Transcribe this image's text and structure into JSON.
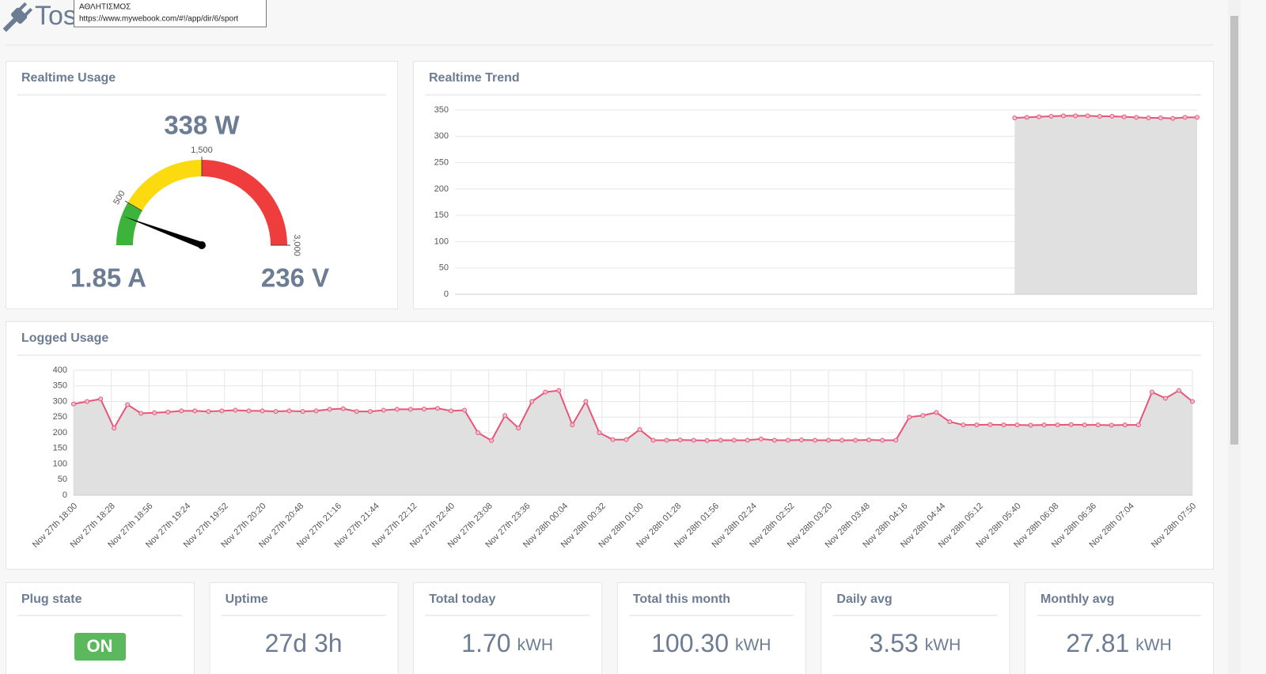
{
  "header": {
    "title": "Tos",
    "tooltip": {
      "title": "ΑΘΛΗΤΙΣΜΟΣ",
      "url": "https://www.mywebook.com/#!/app/dir/6/sport"
    }
  },
  "realtime_usage": {
    "title": "Realtime Usage",
    "current": "1.85 A",
    "voltage": "236 V",
    "chart_data": {
      "type": "gauge",
      "value": 338,
      "value_label": "338 W",
      "lim": [
        0,
        3000
      ],
      "ticks": [
        500,
        {
          "value": 1500,
          "label": "1,500"
        },
        {
          "value": 3000,
          "label": "3,000"
        }
      ],
      "bands": [
        {
          "from": 0,
          "to": 500,
          "color": "#3cb43c"
        },
        {
          "from": 500,
          "to": 1500,
          "color": "#fbdb0f"
        },
        {
          "from": 1500,
          "to": 3000,
          "color": "#ef3c3c"
        }
      ]
    }
  },
  "realtime_trend": {
    "title": "Realtime Trend",
    "chart_data": {
      "type": "line",
      "color": "#e8557a",
      "fill": "#e0e0e0",
      "grid": true,
      "values": [
        null,
        null,
        null,
        null,
        null,
        null,
        null,
        null,
        null,
        null,
        null,
        null,
        null,
        null,
        null,
        null,
        null,
        null,
        null,
        null,
        null,
        null,
        null,
        null,
        null,
        null,
        null,
        null,
        null,
        null,
        null,
        null,
        null,
        null,
        null,
        null,
        null,
        null,
        null,
        null,
        null,
        null,
        null,
        null,
        null,
        null,
        335,
        336,
        337,
        338,
        339,
        339,
        339,
        338,
        338,
        337,
        336,
        335,
        335,
        334,
        336,
        336
      ],
      "ylim": [
        0,
        350
      ],
      "yticks": [
        0,
        50,
        100,
        150,
        200,
        250,
        300,
        350
      ]
    }
  },
  "logged_usage": {
    "title": "Logged Usage",
    "chart_data": {
      "type": "line",
      "color": "#e8557a",
      "fill": "#e0e0e0",
      "grid": true,
      "x": [
        "Nov 27th 18:00",
        "Nov 27th 18:10",
        "Nov 27th 18:20",
        "Nov 27th 18:30",
        "Nov 27th 18:40",
        "Nov 27th 18:50",
        "Nov 27th 19:00",
        "Nov 27th 19:10",
        "Nov 27th 19:20",
        "Nov 27th 19:30",
        "Nov 27th 19:40",
        "Nov 27th 19:50",
        "Nov 27th 20:00",
        "Nov 27th 20:10",
        "Nov 27th 20:20",
        "Nov 27th 20:30",
        "Nov 27th 20:40",
        "Nov 27th 20:50",
        "Nov 27th 21:00",
        "Nov 27th 21:10",
        "Nov 27th 21:20",
        "Nov 27th 21:30",
        "Nov 27th 21:40",
        "Nov 27th 21:50",
        "Nov 27th 22:00",
        "Nov 27th 22:10",
        "Nov 27th 22:20",
        "Nov 27th 22:30",
        "Nov 27th 22:40",
        "Nov 27th 22:50",
        "Nov 27th 23:00",
        "Nov 27th 23:10",
        "Nov 27th 23:20",
        "Nov 27th 23:30",
        "Nov 27th 23:40",
        "Nov 27th 23:50",
        "Nov 28th 00:00",
        "Nov 28th 00:10",
        "Nov 28th 00:20",
        "Nov 28th 00:30",
        "Nov 28th 00:40",
        "Nov 28th 00:50",
        "Nov 28th 01:00",
        "Nov 28th 01:10",
        "Nov 28th 01:20",
        "Nov 28th 01:30",
        "Nov 28th 01:40",
        "Nov 28th 01:50",
        "Nov 28th 02:00",
        "Nov 28th 02:10",
        "Nov 28th 02:20",
        "Nov 28th 02:30",
        "Nov 28th 02:40",
        "Nov 28th 02:50",
        "Nov 28th 03:00",
        "Nov 28th 03:10",
        "Nov 28th 03:20",
        "Nov 28th 03:30",
        "Nov 28th 03:40",
        "Nov 28th 03:50",
        "Nov 28th 04:00",
        "Nov 28th 04:10",
        "Nov 28th 04:20",
        "Nov 28th 04:30",
        "Nov 28th 04:40",
        "Nov 28th 04:50",
        "Nov 28th 05:00",
        "Nov 28th 05:10",
        "Nov 28th 05:20",
        "Nov 28th 05:30",
        "Nov 28th 05:40",
        "Nov 28th 05:50",
        "Nov 28th 06:00",
        "Nov 28th 06:10",
        "Nov 28th 06:20",
        "Nov 28th 06:30",
        "Nov 28th 06:40",
        "Nov 28th 06:50",
        "Nov 28th 07:00",
        "Nov 28th 07:10",
        "Nov 28th 07:20",
        "Nov 28th 07:30",
        "Nov 28th 07:40",
        "Nov 28th 07:50"
      ],
      "values": [
        292,
        300,
        308,
        215,
        290,
        262,
        264,
        266,
        270,
        270,
        268,
        270,
        272,
        270,
        270,
        268,
        270,
        268,
        270,
        275,
        277,
        268,
        268,
        272,
        275,
        275,
        276,
        278,
        270,
        272,
        200,
        175,
        255,
        215,
        300,
        330,
        335,
        225,
        300,
        200,
        178,
        178,
        210,
        176,
        176,
        177,
        176,
        175,
        176,
        176,
        176,
        180,
        176,
        176,
        177,
        176,
        176,
        176,
        176,
        177,
        176,
        176,
        250,
        255,
        265,
        235,
        225,
        225,
        226,
        225,
        225,
        224,
        225,
        225,
        226,
        225,
        225,
        224,
        225,
        225,
        330,
        310,
        335,
        300
      ],
      "xticks": [
        "Nov 27th 18:00",
        "Nov 27th 18:28",
        "Nov 27th 18:56",
        "Nov 27th 19:24",
        "Nov 27th 19:52",
        "Nov 27th 20:20",
        "Nov 27th 20:48",
        "Nov 27th 21:16",
        "Nov 27th 21:44",
        "Nov 27th 22:12",
        "Nov 27th 22:40",
        "Nov 27th 23:08",
        "Nov 27th 23:36",
        "Nov 28th 00:04",
        "Nov 28th 00:32",
        "Nov 28th 01:00",
        "Nov 28th 01:28",
        "Nov 28th 01:56",
        "Nov 28th 02:24",
        "Nov 28th 02:52",
        "Nov 28th 03:20",
        "Nov 28th 03:48",
        "Nov 28th 04:16",
        "Nov 28th 04:44",
        "Nov 28th 05:12",
        "Nov 28th 05:40",
        "Nov 28th 06:08",
        "Nov 28th 06:36",
        "Nov 28th 07:04",
        "Nov 28th 07:50"
      ],
      "ylim": [
        0,
        400
      ],
      "yticks": [
        0,
        50,
        100,
        150,
        200,
        250,
        300,
        350,
        400
      ]
    }
  },
  "cards": [
    {
      "title": "Plug state",
      "value": "ON"
    },
    {
      "title": "Uptime",
      "value": "27d 3h"
    },
    {
      "title": "Total today",
      "value": "1.70",
      "unit": "kWH"
    },
    {
      "title": "Total this month",
      "value": "100.30",
      "unit": "kWH"
    },
    {
      "title": "Daily avg",
      "value": "3.53",
      "unit": "kWH"
    },
    {
      "title": "Monthly avg",
      "value": "27.81",
      "unit": "kWH"
    }
  ]
}
